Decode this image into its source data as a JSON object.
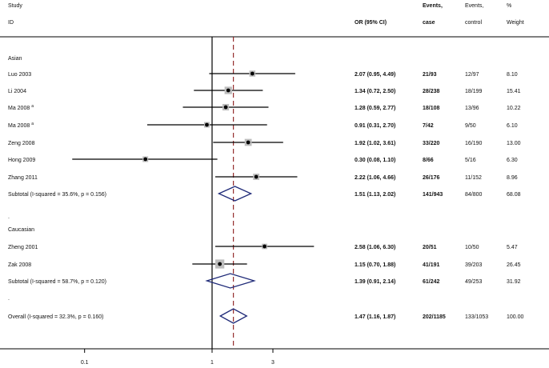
{
  "header": {
    "study": "Study",
    "id": "ID",
    "or": "OR (95% CI)",
    "events_case_1": "Events,",
    "events_case_2": "case",
    "events_control_1": "Events,",
    "events_control_2": "control",
    "weight_1": "%",
    "weight_2": "Weight"
  },
  "chart_data": {
    "type": "forest",
    "scale": "log",
    "x_ticks": [
      0.1,
      1,
      3
    ],
    "x_tick_labels": [
      "0.1",
      "1",
      "3"
    ],
    "null_line": 1,
    "overall_line": 1.47,
    "groups": [
      {
        "name": "Asian",
        "studies": [
          {
            "label": "Luo 2003",
            "sup": "",
            "or": 2.07,
            "lo": 0.95,
            "hi": 4.49,
            "ci_text": "2.07 (0.95, 4.49)",
            "case": "21/93",
            "control": "12/97",
            "weight": "8.10",
            "w": 8.1
          },
          {
            "label": "Li 2004",
            "sup": "",
            "or": 1.34,
            "lo": 0.72,
            "hi": 2.5,
            "ci_text": "1.34 (0.72, 2.50)",
            "case": "28/238",
            "control": "18/199",
            "weight": "15.41",
            "w": 15.41
          },
          {
            "label": "Ma 2008",
            "sup": "a",
            "or": 1.28,
            "lo": 0.59,
            "hi": 2.77,
            "ci_text": "1.28 (0.59, 2.77)",
            "case": "18/108",
            "control": "13/96",
            "weight": "10.22",
            "w": 10.22
          },
          {
            "label": "Ma 2008",
            "sup": "a",
            "or": 0.91,
            "lo": 0.31,
            "hi": 2.7,
            "ci_text": "0.91 (0.31, 2.70)",
            "case": "7/42",
            "control": "9/50",
            "weight": "6.10",
            "w": 6.1
          },
          {
            "label": "Zeng 2008",
            "sup": "",
            "or": 1.92,
            "lo": 1.02,
            "hi": 3.61,
            "ci_text": "1.92 (1.02, 3.61)",
            "case": "33/220",
            "control": "16/190",
            "weight": "13.00",
            "w": 13.0
          },
          {
            "label": "Hong 2009",
            "sup": "",
            "or": 0.3,
            "lo": 0.08,
            "hi": 1.1,
            "ci_text": "0.30 (0.08, 1.10)",
            "case": "8/66",
            "control": "5/16",
            "weight": "6.30",
            "w": 6.3
          },
          {
            "label": "Zhang 2011",
            "sup": "",
            "or": 2.22,
            "lo": 1.06,
            "hi": 4.66,
            "ci_text": "2.22 (1.06, 4.66)",
            "case": "26/176",
            "control": "11/152",
            "weight": "8.96",
            "w": 8.96
          }
        ],
        "subtotal": {
          "label": "Subtotal  (I-squared = 35.6%, p = 0.156)",
          "or": 1.51,
          "lo": 1.13,
          "hi": 2.02,
          "ci_text": "1.51 (1.13, 2.02)",
          "case": "141/943",
          "control": "84/800",
          "weight": "68.08"
        }
      },
      {
        "name": "Caucasian",
        "studies": [
          {
            "label": "Zheng 2001",
            "sup": "",
            "or": 2.58,
            "lo": 1.06,
            "hi": 6.3,
            "ci_text": "2.58 (1.06, 6.30)",
            "case": "20/51",
            "control": "10/50",
            "weight": "5.47",
            "w": 5.47
          },
          {
            "label": "Zak 2008",
            "sup": "",
            "or": 1.15,
            "lo": 0.7,
            "hi": 1.88,
            "ci_text": "1.15 (0.70, 1.88)",
            "case": "41/191",
            "control": "39/203",
            "weight": "26.45",
            "w": 26.45
          }
        ],
        "subtotal": {
          "label": "Subtotal  (I-squared = 58.7%, p = 0.120)",
          "or": 1.39,
          "lo": 0.91,
          "hi": 2.14,
          "ci_text": "1.39 (0.91, 2.14)",
          "case": "61/242",
          "control": "49/253",
          "weight": "31.92"
        }
      }
    ],
    "overall": {
      "label": "Overall  (I-squared = 32.3%, p = 0.160)",
      "or": 1.47,
      "lo": 1.16,
      "hi": 1.87,
      "ci_text": "1.47 (1.16, 1.87)",
      "case": "202/1185",
      "control": "133/1053",
      "weight": "100.00"
    }
  },
  "colors": {
    "line": "#000000",
    "overall_dash": "#8b1a1a",
    "diamond": "#1f2a78",
    "weight_box": "#bdbdbd"
  }
}
